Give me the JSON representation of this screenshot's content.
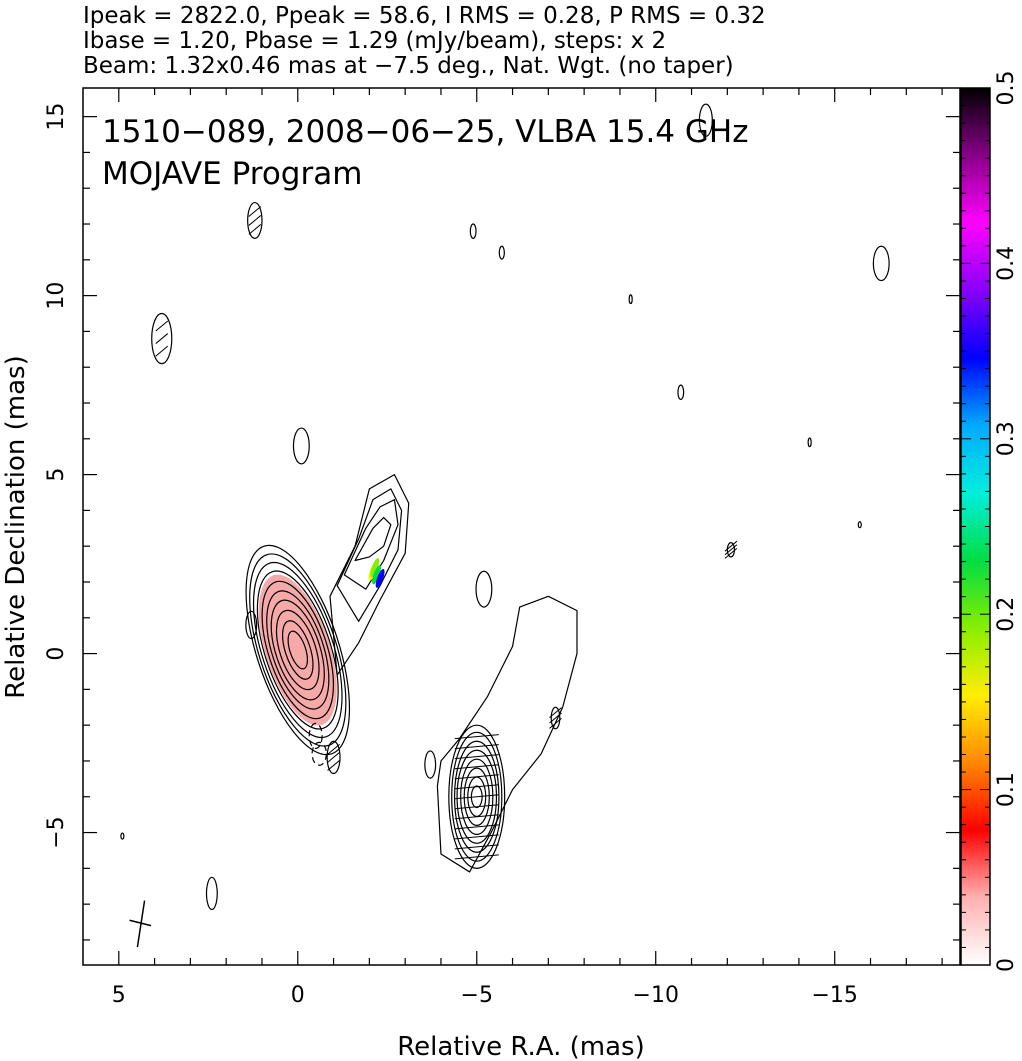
{
  "header": {
    "line1": "Ipeak = 2822.0, Ppeak = 58.6, I RMS = 0.28, P RMS = 0.32",
    "line2": "Ibase = 1.20, Pbase = 1.29 (mJy/beam), steps: x 2",
    "line3": "Beam: 1.32x0.46 mas at −7.5 deg., Nat. Wgt. (no taper)"
  },
  "chart_data": {
    "type": "contour",
    "title": "1510−089, 2008−06−25, VLBA 15.4 GHz",
    "subtitle": "MOJAVE Program",
    "xlabel": "Relative R.A. (mas)",
    "ylabel": "Relative Declination (mas)",
    "xlim": [
      6.0,
      -18.5
    ],
    "ylim": [
      -8.7,
      15.8
    ],
    "x_ticks": [
      5,
      0,
      -5,
      -10,
      -15
    ],
    "x_tick_labels": [
      "5",
      "0",
      "−5",
      "−10",
      "−15"
    ],
    "y_ticks": [
      -5,
      0,
      5,
      10,
      15
    ],
    "y_tick_labels": [
      "−5",
      "0",
      "5",
      "10",
      "15"
    ],
    "colorbar": {
      "range": [
        0,
        0.5
      ],
      "ticks": [
        0,
        0.1,
        0.2,
        0.3,
        0.4,
        0.5
      ],
      "tick_labels": [
        "0",
        "0.1",
        "0.2",
        "0.3",
        "0.4",
        "0.5"
      ],
      "colors": [
        "#ffffff",
        "#ffb0b0",
        "#ff0000",
        "#ff8800",
        "#ffee00",
        "#88ee00",
        "#00dd44",
        "#00eedd",
        "#00aaff",
        "#0000ff",
        "#8800ff",
        "#ff00ff",
        "#880088",
        "#000000"
      ]
    },
    "core": {
      "x": 0.0,
      "y": 0.1,
      "contour_radii": [
        [
          0.22,
          0.55
        ],
        [
          0.35,
          0.85
        ],
        [
          0.5,
          1.15
        ],
        [
          0.62,
          1.45
        ],
        [
          0.72,
          1.72
        ],
        [
          0.82,
          2.0
        ],
        [
          0.92,
          2.3
        ],
        [
          1.0,
          2.55
        ],
        [
          1.08,
          2.8
        ],
        [
          1.15,
          3.05
        ]
      ],
      "angle": -18
    },
    "south_component": {
      "x": -5.0,
      "y": -4.0,
      "contour_radii": [
        [
          0.15,
          0.3
        ],
        [
          0.25,
          0.55
        ],
        [
          0.35,
          0.8
        ],
        [
          0.45,
          1.05
        ],
        [
          0.55,
          1.3
        ],
        [
          0.62,
          1.55
        ],
        [
          0.7,
          1.8
        ],
        [
          0.78,
          2.0
        ]
      ]
    },
    "noise_blobs": [
      {
        "x": 1.2,
        "y": 12.1,
        "rx": 0.2,
        "ry": 0.5,
        "ticks": true
      },
      {
        "x": 3.8,
        "y": 8.8,
        "rx": 0.28,
        "ry": 0.7,
        "ticks": true
      },
      {
        "x": -4.9,
        "y": 11.8,
        "rx": 0.08,
        "ry": 0.2
      },
      {
        "x": -5.7,
        "y": 11.2,
        "rx": 0.07,
        "ry": 0.18
      },
      {
        "x": -11.4,
        "y": 14.9,
        "rx": 0.18,
        "ry": 0.45
      },
      {
        "x": -16.3,
        "y": 10.9,
        "rx": 0.22,
        "ry": 0.48
      },
      {
        "x": -9.3,
        "y": 9.9,
        "rx": 0.04,
        "ry": 0.12
      },
      {
        "x": -10.7,
        "y": 7.3,
        "rx": 0.08,
        "ry": 0.2
      },
      {
        "x": -14.3,
        "y": 5.9,
        "rx": 0.04,
        "ry": 0.12
      },
      {
        "x": -15.7,
        "y": 3.6,
        "rx": 0.03,
        "ry": 0.08
      },
      {
        "x": -12.1,
        "y": 2.9,
        "rx": 0.1,
        "ry": 0.2,
        "ticks": true
      },
      {
        "x": -0.1,
        "y": 5.8,
        "rx": 0.22,
        "ry": 0.5
      },
      {
        "x": 1.3,
        "y": 0.8,
        "rx": 0.15,
        "ry": 0.38
      },
      {
        "x": -1.0,
        "y": -2.9,
        "rx": 0.18,
        "ry": 0.45,
        "ticks": true
      },
      {
        "x": -3.7,
        "y": -3.1,
        "rx": 0.15,
        "ry": 0.38
      },
      {
        "x": -5.2,
        "y": 1.8,
        "rx": 0.22,
        "ry": 0.5
      },
      {
        "x": -7.2,
        "y": -1.8,
        "rx": 0.12,
        "ry": 0.3,
        "ticks": true
      },
      {
        "x": 2.4,
        "y": -6.7,
        "rx": 0.15,
        "ry": 0.45
      },
      {
        "x": 4.9,
        "y": -5.1,
        "rx": 0.02,
        "ry": 0.08
      },
      {
        "x": -0.5,
        "y": -2.3,
        "rx": 0.18,
        "ry": 0.35,
        "dashed": true
      },
      {
        "x": -0.6,
        "y": -2.8,
        "rx": 0.2,
        "ry": 0.32,
        "dashed": true
      }
    ]
  }
}
